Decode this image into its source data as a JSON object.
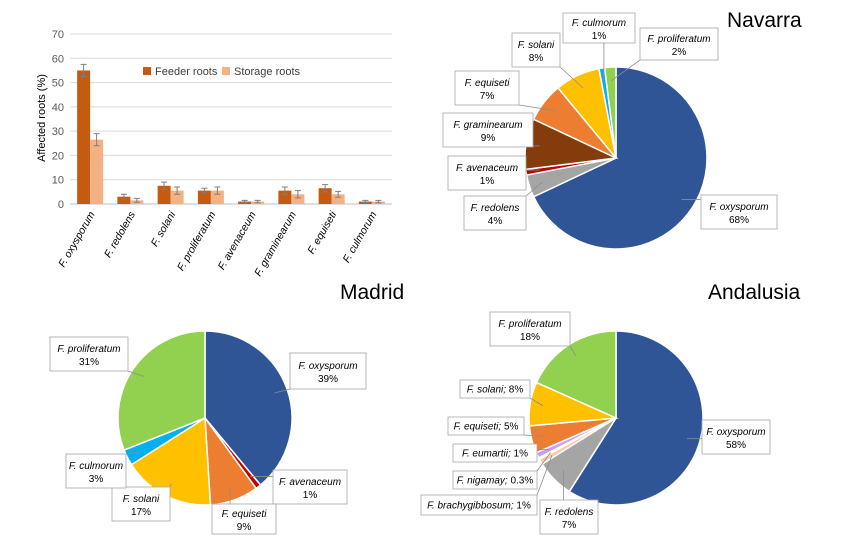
{
  "chart_data": [
    {
      "type": "bar",
      "categories": [
        "F. oxysporum",
        "F. redolens",
        "F. solani",
        "F. proliferatum",
        "F. avenaceum",
        "F. graminearum",
        "F. equiseti",
        "F. culmorum"
      ],
      "series": [
        {
          "name": "Feeder roots",
          "values": [
            55,
            3,
            7.5,
            5.5,
            1,
            5.5,
            6.5,
            1
          ],
          "errors": [
            2.5,
            1,
            1.5,
            1,
            0.5,
            1.5,
            1.5,
            0.5
          ],
          "color": "#c55a11"
        },
        {
          "name": "Storage roots",
          "values": [
            26.5,
            1.5,
            5.5,
            5.5,
            1,
            4,
            4,
            1
          ],
          "errors": [
            2.5,
            0.8,
            1.5,
            1.5,
            0.5,
            1.5,
            1.2,
            0.5
          ],
          "color": "#f4b183"
        }
      ],
      "title": "",
      "xlabel": "",
      "ylabel": "Affected roots (%)",
      "ylim": [
        0,
        70
      ],
      "yticks": [
        0,
        10,
        20,
        30,
        40,
        50,
        60,
        70
      ],
      "grid": true,
      "legend": "top"
    },
    {
      "type": "pie",
      "title": "Navarra",
      "slices": [
        {
          "species": "F. oxysporum",
          "pct_label": "68%",
          "value": 68,
          "color": "#2f5597"
        },
        {
          "species": "F. redolens",
          "pct_label": "4%",
          "value": 4,
          "color": "#a5a5a5"
        },
        {
          "species": "F. avenaceum",
          "pct_label": "1%",
          "value": 1,
          "color": "#c00000"
        },
        {
          "species": "F. graminearum",
          "pct_label": "9%",
          "value": 9,
          "color": "#843c0c"
        },
        {
          "species": "F. equiseti",
          "pct_label": "7%",
          "value": 7,
          "color": "#ed7d31"
        },
        {
          "species": "F. solani",
          "pct_label": "8%",
          "value": 8,
          "color": "#ffc000"
        },
        {
          "species": "F. culmorum",
          "pct_label": "1%",
          "value": 1,
          "color": "#00b0f0"
        },
        {
          "species": "F. proliferatum",
          "pct_label": "2%",
          "value": 2,
          "color": "#92d050"
        }
      ]
    },
    {
      "type": "pie",
      "title": "Madrid",
      "slices": [
        {
          "species": "F. oxysporum",
          "pct_label": "39%",
          "value": 39,
          "color": "#2f5597"
        },
        {
          "species": "F. avenaceum",
          "pct_label": "1%",
          "value": 1,
          "color": "#c00000"
        },
        {
          "species": "F. equiseti",
          "pct_label": "9%",
          "value": 9,
          "color": "#ed7d31"
        },
        {
          "species": "F. solani",
          "pct_label": "17%",
          "value": 17,
          "color": "#ffc000"
        },
        {
          "species": "F. culmorum",
          "pct_label": "3%",
          "value": 3,
          "color": "#00b0f0"
        },
        {
          "species": "F. proliferatum",
          "pct_label": "31%",
          "value": 31,
          "color": "#92d050"
        }
      ]
    },
    {
      "type": "pie",
      "title": "Andalusia",
      "slices": [
        {
          "species": "F. oxysporum",
          "pct_label": "58%",
          "value": 58,
          "color": "#2f5597"
        },
        {
          "species": "F. redolens",
          "pct_label": "7%",
          "value": 7,
          "color": "#a5a5a5"
        },
        {
          "species": "F. brachygibbosum;",
          "pct_label": "1%",
          "value": 1,
          "color": "#f8cbad"
        },
        {
          "species": "F. nigamay;",
          "pct_label": "0.3%",
          "value": 0.3,
          "color": "#ffe699"
        },
        {
          "species": "F. eumartii;",
          "pct_label": "1%",
          "value": 1,
          "color": "#cc99ff"
        },
        {
          "species": "F. equiseti;",
          "pct_label": "5%",
          "value": 5,
          "color": "#ed7d31"
        },
        {
          "species": "F. solani;",
          "pct_label": "8%",
          "value": 8,
          "color": "#ffc000"
        },
        {
          "species": "F. proliferatum",
          "pct_label": "18%",
          "value": 18,
          "color": "#92d050"
        }
      ]
    }
  ]
}
